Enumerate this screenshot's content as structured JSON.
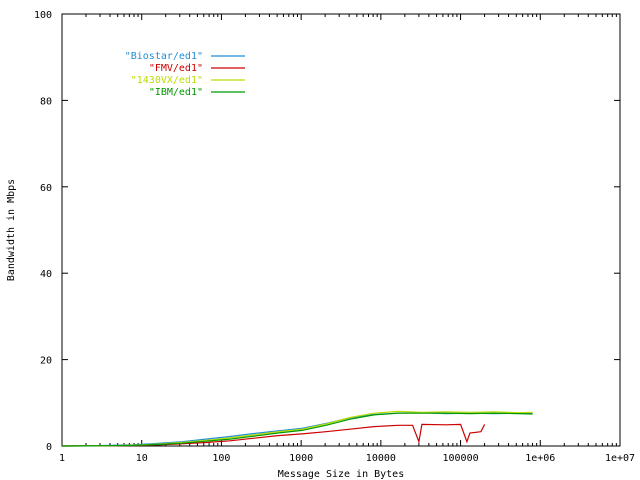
{
  "chart_data": {
    "type": "line",
    "title": "",
    "xlabel": "Message Size in Bytes",
    "ylabel": "Bandwidth in Mbps",
    "x_scale": "log",
    "xlim": [
      1,
      10000000
    ],
    "ylim": [
      0,
      100
    ],
    "x_ticks": [
      {
        "value": 1,
        "label": "1"
      },
      {
        "value": 10,
        "label": "10"
      },
      {
        "value": 100,
        "label": "100"
      },
      {
        "value": 1000,
        "label": "1000"
      },
      {
        "value": 10000,
        "label": "10000"
      },
      {
        "value": 100000,
        "label": "100000"
      },
      {
        "value": 1000000,
        "label": "1e+06"
      },
      {
        "value": 10000000,
        "label": "1e+07"
      }
    ],
    "y_ticks": [
      {
        "value": 0,
        "label": "0"
      },
      {
        "value": 20,
        "label": "20"
      },
      {
        "value": 40,
        "label": "40"
      },
      {
        "value": 60,
        "label": "60"
      },
      {
        "value": 80,
        "label": "80"
      },
      {
        "value": 100,
        "label": "100"
      }
    ],
    "grid": false,
    "legend_position": "top-left",
    "series": [
      {
        "name": "\"Biostar/ed1\"",
        "color": "#1f8fd6",
        "x": [
          1,
          2,
          4,
          8,
          16,
          32,
          64,
          128,
          256,
          512,
          1024,
          2048,
          4096,
          8192,
          16384,
          32768,
          65536,
          131072,
          262144,
          524288,
          800000
        ],
        "y": [
          0.0,
          0.05,
          0.15,
          0.3,
          0.6,
          1.0,
          1.6,
          2.2,
          2.9,
          3.5,
          4.1,
          5.2,
          6.5,
          7.3,
          7.6,
          7.7,
          7.5,
          7.6,
          7.5,
          7.6,
          7.5
        ]
      },
      {
        "name": "\"FMV/ed1\"",
        "color": "#cc0000",
        "x": [
          1,
          2,
          4,
          8,
          16,
          32,
          64,
          128,
          256,
          512,
          1024,
          2048,
          4096,
          8192,
          16384,
          25000,
          30000,
          32768,
          65536,
          100000,
          120000,
          131072,
          180000,
          200000
        ],
        "y": [
          0.0,
          0.02,
          0.05,
          0.1,
          0.25,
          0.5,
          0.8,
          1.2,
          1.8,
          2.4,
          2.8,
          3.3,
          3.9,
          4.5,
          4.8,
          4.8,
          1.0,
          5.0,
          4.9,
          5.0,
          1.0,
          3.0,
          3.3,
          5.0
        ]
      },
      {
        "name": "\"1430VX/ed1\"",
        "color": "#bbdd00",
        "x": [
          1,
          2,
          4,
          8,
          16,
          32,
          64,
          128,
          256,
          512,
          1024,
          2048,
          4096,
          8192,
          16384,
          32768,
          65536,
          131072,
          262144,
          524288,
          800000
        ],
        "y": [
          0.0,
          0.02,
          0.08,
          0.2,
          0.45,
          0.8,
          1.3,
          1.9,
          2.6,
          3.3,
          3.9,
          5.1,
          6.6,
          7.6,
          8.0,
          7.8,
          7.9,
          7.8,
          7.9,
          7.7,
          7.8
        ]
      },
      {
        "name": "\"IBM/ed1\"",
        "color": "#009900",
        "x": [
          1,
          2,
          4,
          8,
          16,
          32,
          64,
          128,
          256,
          512,
          1024,
          2048,
          4096,
          8192,
          16384,
          32768,
          65536,
          131072,
          262144,
          524288,
          800000
        ],
        "y": [
          0.0,
          0.02,
          0.06,
          0.15,
          0.35,
          0.65,
          1.1,
          1.6,
          2.3,
          3.0,
          3.6,
          4.8,
          6.2,
          7.2,
          7.6,
          7.6,
          7.6,
          7.5,
          7.6,
          7.5,
          7.4
        ]
      }
    ]
  }
}
